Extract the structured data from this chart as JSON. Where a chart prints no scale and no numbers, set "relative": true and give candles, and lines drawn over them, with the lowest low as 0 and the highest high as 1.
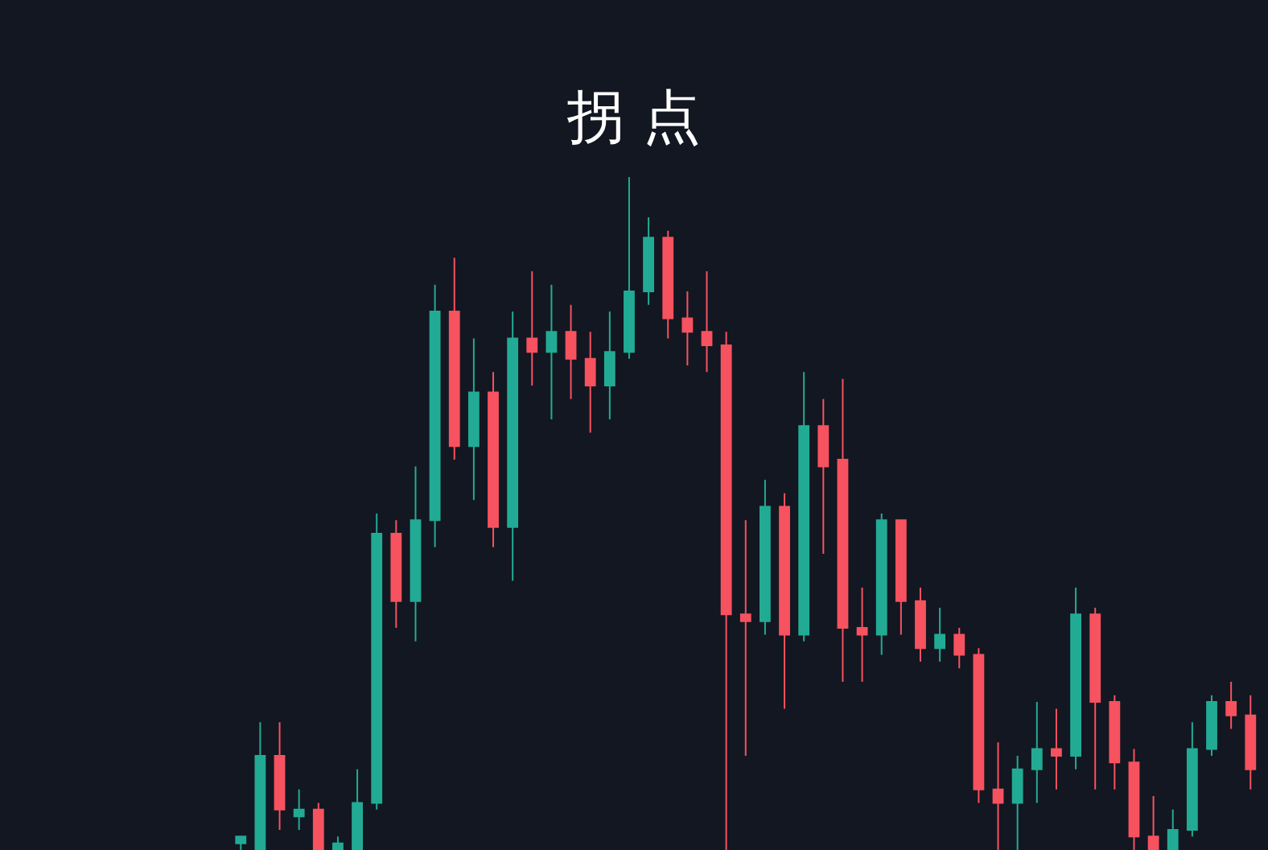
{
  "chart_data": {
    "type": "candlestick",
    "title": "拐 点",
    "relative": true,
    "tick_labels": false,
    "categories": [
      null,
      null,
      null,
      null,
      null,
      null,
      null,
      null,
      null,
      null,
      null,
      null,
      null,
      null,
      null,
      null,
      null,
      null,
      null,
      null,
      null,
      null,
      null,
      null,
      null,
      null,
      null,
      null,
      null,
      null,
      null,
      null,
      null,
      null,
      null,
      null,
      null,
      null,
      null,
      null,
      null,
      null,
      null,
      null,
      null,
      null,
      null,
      null,
      null,
      null,
      null,
      null,
      null
    ],
    "ohlc": [
      [
        0.01,
        0.02,
        0,
        0.02
      ],
      [
        0,
        0.19,
        0,
        0.14
      ],
      [
        0.14,
        0.19,
        0.03,
        0.06
      ],
      [
        0.05,
        0.09,
        0.03,
        0.06
      ],
      [
        0.06,
        0.07,
        0,
        0
      ],
      [
        0,
        0.02,
        0,
        0.01
      ],
      [
        0,
        0.12,
        0,
        0.07
      ],
      [
        0.07,
        0.5,
        0.06,
        0.47
      ],
      [
        0.47,
        0.49,
        0.33,
        0.37
      ],
      [
        0.37,
        0.57,
        0.31,
        0.49
      ],
      [
        0.49,
        0.84,
        0.45,
        0.8
      ],
      [
        0.8,
        0.88,
        0.58,
        0.6
      ],
      [
        0.6,
        0.76,
        0.52,
        0.68
      ],
      [
        0.68,
        0.71,
        0.45,
        0.48
      ],
      [
        0.48,
        0.8,
        0.4,
        0.76
      ],
      [
        0.76,
        0.86,
        0.69,
        0.74
      ],
      [
        0.74,
        0.84,
        0.64,
        0.77
      ],
      [
        0.77,
        0.81,
        0.67,
        0.73
      ],
      [
        0.73,
        0.77,
        0.62,
        0.69
      ],
      [
        0.69,
        0.8,
        0.64,
        0.74
      ],
      [
        0.74,
        1,
        0.73,
        0.83
      ],
      [
        0.83,
        0.94,
        0.81,
        0.91
      ],
      [
        0.91,
        0.92,
        0.76,
        0.79
      ],
      [
        0.79,
        0.83,
        0.72,
        0.77
      ],
      [
        0.77,
        0.86,
        0.71,
        0.75
      ],
      [
        0.75,
        0.77,
        0,
        0.35
      ],
      [
        0.35,
        0.49,
        0.14,
        0.34
      ],
      [
        0.34,
        0.55,
        0.32,
        0.51
      ],
      [
        0.51,
        0.53,
        0.21,
        0.32
      ],
      [
        0.32,
        0.71,
        0.31,
        0.63
      ],
      [
        0.63,
        0.67,
        0.44,
        0.57
      ],
      [
        0.58,
        0.7,
        0.25,
        0.33
      ],
      [
        0.33,
        0.39,
        0.25,
        0.32
      ],
      [
        0.32,
        0.5,
        0.29,
        0.49
      ],
      [
        0.49,
        0.49,
        0.32,
        0.37
      ],
      [
        0.37,
        0.39,
        0.28,
        0.3
      ],
      [
        0.3,
        0.36,
        0.28,
        0.32
      ],
      [
        0.32,
        0.33,
        0.27,
        0.29
      ],
      [
        0.29,
        0.3,
        0.07,
        0.09
      ],
      [
        0.09,
        0.16,
        0,
        0.07
      ],
      [
        0.07,
        0.14,
        0,
        0.12
      ],
      [
        0.12,
        0.22,
        0.07,
        0.15
      ],
      [
        0.15,
        0.21,
        0.09,
        0.14
      ],
      [
        0.14,
        0.39,
        0.12,
        0.35
      ],
      [
        0.35,
        0.36,
        0.09,
        0.22
      ],
      [
        0.22,
        0.23,
        0.09,
        0.13
      ],
      [
        0.13,
        0.15,
        0,
        0.02
      ],
      [
        0.02,
        0.08,
        0,
        0
      ],
      [
        0,
        0.06,
        0,
        0.03
      ],
      [
        0.03,
        0.19,
        0.02,
        0.15
      ],
      [
        0.15,
        0.23,
        0.14,
        0.22
      ],
      [
        0.22,
        0.25,
        0.18,
        0.2
      ],
      [
        0.2,
        0.23,
        0.09,
        0.12
      ]
    ]
  }
}
